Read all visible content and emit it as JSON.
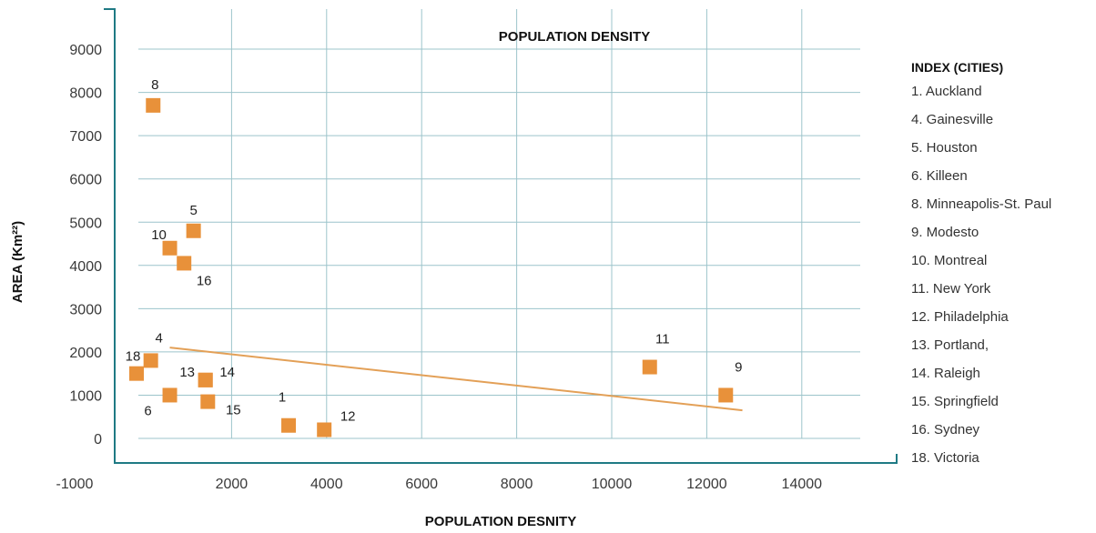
{
  "chart_data": {
    "type": "scatter",
    "title": "POPULATION DENSITY",
    "xlabel": "POPULATION DESNITY",
    "ylabel": "AREA (Km²²)",
    "x_ticks": [
      -1000,
      2000,
      4000,
      6000,
      8000,
      10000,
      12000,
      14000
    ],
    "y_ticks": [
      0,
      1000,
      2000,
      3000,
      4000,
      5000,
      6000,
      7000,
      8000,
      9000
    ],
    "grid": true,
    "legend_position": "right",
    "marker_color": "#E8913A",
    "trendline_color": "#E3A057",
    "axis_color": "#1F7A84",
    "grid_color": "#9CC4CB",
    "points": [
      {
        "label": "1",
        "x": 3200,
        "y": 300
      },
      {
        "label": "4",
        "x": 300,
        "y": 1800
      },
      {
        "label": "5",
        "x": 1200,
        "y": 4800
      },
      {
        "label": "6",
        "x": 700,
        "y": 1000
      },
      {
        "label": "8",
        "x": 350,
        "y": 7700
      },
      {
        "label": "9",
        "x": 12400,
        "y": 1000
      },
      {
        "label": "10",
        "x": 700,
        "y": 4400
      },
      {
        "label": "11",
        "x": 10800,
        "y": 1650
      },
      {
        "label": "12",
        "x": 3950,
        "y": 200
      },
      {
        "label": "13",
        "x": 1450,
        "y": 1350
      },
      {
        "label": "14",
        "x": 1450,
        "y": 1350
      },
      {
        "label": "15",
        "x": 1500,
        "y": 850
      },
      {
        "label": "16",
        "x": 1000,
        "y": 4050
      },
      {
        "label": "18",
        "x": 0,
        "y": 1500
      }
    ],
    "trendline": {
      "x1": 700,
      "y1": 2100,
      "x2": 12750,
      "y2": 650
    }
  },
  "legend": {
    "title": "INDEX (CITIES)",
    "items": [
      "1. Auckland",
      "4. Gainesville",
      "5. Houston",
      "6. Killeen",
      "8. Minneapolis-St. Paul",
      "9. Modesto",
      "10. Montreal",
      "11. New York",
      "12. Philadelphia",
      "13. Portland,",
      "14. Raleigh",
      "15. Springfield",
      "16. Sydney",
      "18. Victoria"
    ]
  }
}
